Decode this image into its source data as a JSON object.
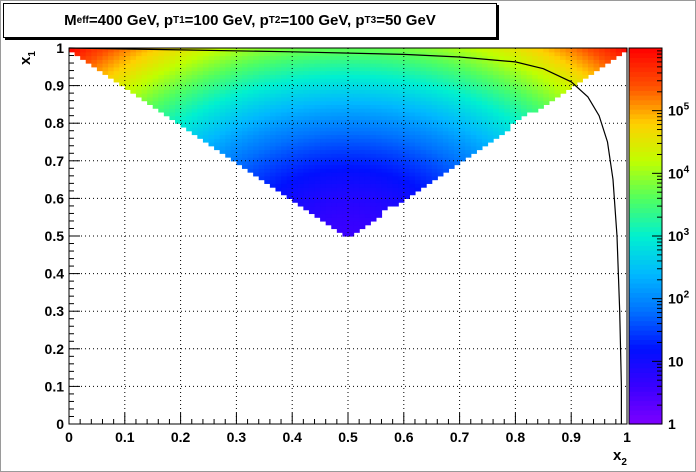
{
  "chart_data": {
    "type": "heatmap",
    "title_parts": [
      {
        "t": "M",
        "s": false
      },
      {
        "t": "eff",
        "s": true
      },
      {
        "t": "=400 GeV, p",
        "s": false
      },
      {
        "t": "T1",
        "s": true
      },
      {
        "t": "=100 GeV, p",
        "s": false
      },
      {
        "t": "T2",
        "s": true
      },
      {
        "t": "=100 GeV, p",
        "s": false
      },
      {
        "t": "T3",
        "s": true
      },
      {
        "t": "=50 GeV",
        "s": false
      }
    ],
    "xlabel": {
      "main": "x",
      "sub": "2"
    },
    "ylabel": {
      "main": "x",
      "sub": "1"
    },
    "xlim": [
      0,
      1
    ],
    "ylim": [
      0,
      1
    ],
    "x_ticks": [
      "0",
      "0.1",
      "0.2",
      "0.3",
      "0.4",
      "0.5",
      "0.6",
      "0.7",
      "0.8",
      "0.9",
      "1"
    ],
    "y_ticks": [
      "0",
      "0.1",
      "0.2",
      "0.3",
      "0.4",
      "0.5",
      "0.6",
      "0.7",
      "0.8",
      "0.9",
      "1"
    ],
    "grid": true,
    "z_scale": "log",
    "z_range": [
      1,
      1000000
    ],
    "z_ticks": [
      {
        "value": 1,
        "base": "1",
        "exp": ""
      },
      {
        "value": 10,
        "base": "10",
        "exp": ""
      },
      {
        "value": 100,
        "base": "10",
        "exp": "2"
      },
      {
        "value": 1000,
        "base": "10",
        "exp": "3"
      },
      {
        "value": 10000,
        "base": "10",
        "exp": "4"
      },
      {
        "value": 100000,
        "base": "10",
        "exp": "5"
      }
    ],
    "filled_region": {
      "vertices": [
        [
          0,
          1
        ],
        [
          1,
          1
        ],
        [
          0.5,
          0.5
        ]
      ],
      "z_min_at_point": [
        0.5,
        0.5
      ],
      "z_min_approx": 4,
      "z_max_approx": 1000000
    },
    "boundary_curve": [
      [
        0.0,
        1.0
      ],
      [
        0.2,
        0.995
      ],
      [
        0.4,
        0.99
      ],
      [
        0.6,
        0.983
      ],
      [
        0.7,
        0.976
      ],
      [
        0.8,
        0.963
      ],
      [
        0.85,
        0.945
      ],
      [
        0.9,
        0.91
      ],
      [
        0.93,
        0.87
      ],
      [
        0.95,
        0.82
      ],
      [
        0.965,
        0.75
      ],
      [
        0.975,
        0.65
      ],
      [
        0.982,
        0.5
      ],
      [
        0.987,
        0.3
      ],
      [
        0.99,
        0.1
      ],
      [
        0.99,
        0.0
      ]
    ],
    "palette": [
      "#7e00ff",
      "#3a00ff",
      "#0010ff",
      "#0070ff",
      "#00b8ff",
      "#00f0d0",
      "#50ff60",
      "#c0ff00",
      "#ffd000",
      "#ff5000",
      "#ff0000"
    ]
  }
}
